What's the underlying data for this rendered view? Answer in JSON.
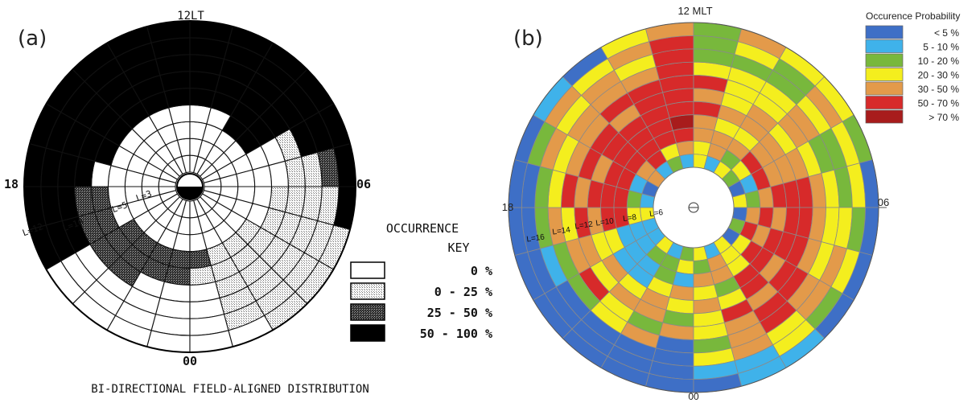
{
  "panels": [
    {
      "label": "(a)"
    },
    {
      "label": "(b)"
    }
  ],
  "chart_data": [
    {
      "type": "heatmap",
      "projection": "polar",
      "panel": "(a)",
      "title": "BI-DIRECTIONAL FIELD-ALIGNED DISTRIBUTION",
      "angle_labels": {
        "top": "12LT",
        "right": "06",
        "bottom": "00",
        "left": "18"
      },
      "radial_labels": [
        "L=3",
        "L=5",
        "L=10",
        "L=12"
      ],
      "legend_title": [
        "OCCURRENCE",
        "KEY"
      ],
      "legend": [
        {
          "label": "0 %",
          "fill": "#ffffff"
        },
        {
          "label": "0 - 25 %",
          "fill": "#e2e2e2"
        },
        {
          "label": "25 - 50 %",
          "fill": "#555555"
        },
        {
          "label": "50 - 100 %",
          "fill": "#000000"
        }
      ],
      "rings": 9,
      "sectors": 24,
      "note": "values are occurrence class index 0..3 per ring (inner to outer) and sector (MLT hour 0..23)",
      "values": [
        [
          0,
          0,
          0,
          0,
          0,
          0,
          0,
          0,
          0,
          0,
          0,
          0,
          0,
          0,
          0,
          0,
          0,
          0,
          0,
          0,
          0,
          0,
          0,
          0
        ],
        [
          0,
          0,
          0,
          0,
          0,
          0,
          0,
          0,
          0,
          0,
          0,
          0,
          0,
          0,
          0,
          0,
          0,
          0,
          0,
          0,
          0,
          0,
          0,
          0
        ],
        [
          0,
          0,
          0,
          0,
          0,
          0,
          0,
          0,
          0,
          0,
          0,
          0,
          0,
          0,
          0,
          0,
          0,
          0,
          0,
          0,
          0,
          0,
          0,
          0
        ],
        [
          2,
          2,
          2,
          2,
          0,
          0,
          0,
          0,
          0,
          0,
          0,
          0,
          0,
          0,
          3,
          3,
          0,
          0,
          0,
          0,
          1,
          1,
          1,
          2
        ],
        [
          2,
          2,
          2,
          2,
          2,
          2,
          0,
          3,
          3,
          3,
          3,
          3,
          3,
          3,
          3,
          3,
          0,
          0,
          1,
          1,
          1,
          1,
          1,
          1
        ],
        [
          0,
          0,
          2,
          2,
          2,
          2,
          3,
          3,
          3,
          3,
          3,
          3,
          3,
          3,
          3,
          3,
          1,
          1,
          1,
          1,
          1,
          1,
          1,
          0
        ],
        [
          0,
          0,
          0,
          0,
          3,
          3,
          3,
          3,
          3,
          3,
          3,
          3,
          3,
          3,
          3,
          3,
          3,
          1,
          1,
          1,
          1,
          1,
          1,
          0
        ],
        [
          0,
          0,
          0,
          0,
          3,
          3,
          3,
          3,
          3,
          3,
          3,
          3,
          3,
          3,
          3,
          3,
          3,
          2,
          1,
          1,
          1,
          1,
          1,
          0
        ],
        [
          0,
          0,
          0,
          0,
          3,
          3,
          3,
          3,
          3,
          3,
          3,
          3,
          3,
          3,
          3,
          3,
          3,
          3,
          3,
          1,
          1,
          1,
          0,
          0
        ]
      ]
    },
    {
      "type": "heatmap",
      "projection": "polar",
      "panel": "(b)",
      "angle_labels": {
        "top": "12 MLT",
        "right": "06",
        "bottom": "00",
        "left": "18"
      },
      "radial_labels": [
        "L=6",
        "L=8",
        "L=10",
        "L=12",
        "L=14",
        "L=16"
      ],
      "legend_title": "Occurence Probability",
      "legend": [
        {
          "label": "< 5 %",
          "color": "#3e6fc6"
        },
        {
          "label": "5 -  10 %",
          "color": "#3fb2ea"
        },
        {
          "label": "10 - 20 %",
          "color": "#78b83c"
        },
        {
          "label": "20 - 30 %",
          "color": "#f4ee1e"
        },
        {
          "label": "30 - 50 %",
          "color": "#e39a4a"
        },
        {
          "label": "50 - 70 %",
          "color": "#d72a2a"
        },
        {
          "label": "> 70 %",
          "color": "#a81c1c"
        }
      ],
      "rings": 11,
      "sectors": 24,
      "note": "values are legend class index 0..6 per ring (inner to outer) and sector (MLT hour 0..23)",
      "values": [
        [
          2,
          1,
          3,
          1,
          1,
          3,
          1,
          0,
          4,
          1,
          2,
          1,
          3,
          1,
          3,
          2,
          0,
          3,
          0,
          2,
          0,
          3,
          1,
          3
        ],
        [
          3,
          2,
          2,
          1,
          1,
          3,
          2,
          1,
          4,
          5,
          3,
          4,
          3,
          4,
          2,
          3,
          1,
          2,
          4,
          5,
          3,
          3,
          4,
          2
        ],
        [
          1,
          2,
          1,
          1,
          1,
          5,
          5,
          5,
          5,
          5,
          5,
          5,
          4,
          4,
          4,
          5,
          5,
          4,
          5,
          4,
          5,
          3,
          4,
          4
        ],
        [
          4,
          3,
          1,
          1,
          3,
          5,
          5,
          5,
          5,
          5,
          5,
          6,
          4,
          3,
          3,
          4,
          4,
          5,
          4,
          5,
          5,
          5,
          2,
          3
        ],
        [
          3,
          4,
          3,
          4,
          3,
          4,
          5,
          4,
          5,
          5,
          5,
          5,
          5,
          4,
          4,
          4,
          4,
          5,
          5,
          5,
          4,
          5,
          3,
          4
        ],
        [
          2,
          4,
          4,
          3,
          4,
          5,
          4,
          5,
          5,
          4,
          5,
          5,
          4,
          3,
          4,
          3,
          4,
          5,
          5,
          5,
          5,
          4,
          5,
          3
        ],
        [
          4,
          2,
          3,
          5,
          4,
          3,
          5,
          4,
          4,
          5,
          5,
          5,
          5,
          3,
          3,
          4,
          3,
          4,
          4,
          4,
          5,
          5,
          4,
          3
        ],
        [
          0,
          4,
          3,
          2,
          2,
          4,
          3,
          3,
          4,
          4,
          4,
          5,
          3,
          3,
          3,
          4,
          2,
          3,
          3,
          3,
          4,
          5,
          4,
          2
        ],
        [
          0,
          0,
          0,
          0,
          1,
          2,
          2,
          4,
          3,
          4,
          3,
          5,
          2,
          2,
          2,
          3,
          2,
          2,
          3,
          4,
          4,
          3,
          4,
          3
        ],
        [
          0,
          0,
          0,
          0,
          0,
          0,
          0,
          2,
          4,
          3,
          4,
          5,
          2,
          3,
          2,
          4,
          3,
          3,
          2,
          3,
          2,
          3,
          1,
          1
        ],
        [
          0,
          0,
          0,
          0,
          0,
          0,
          0,
          0,
          1,
          0,
          3,
          4,
          2,
          4,
          3,
          3,
          2,
          0,
          0,
          0,
          0,
          1,
          1,
          0
        ]
      ]
    }
  ]
}
